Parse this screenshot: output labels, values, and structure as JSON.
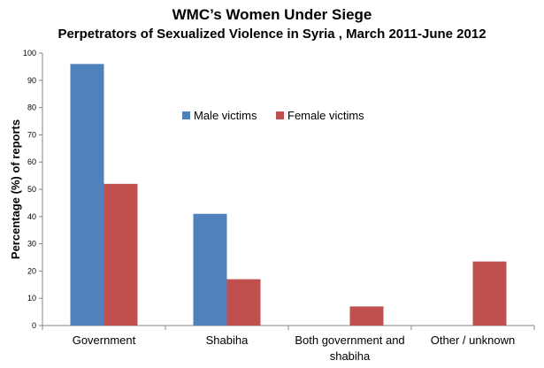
{
  "title": "WMC’s Women Under Siege",
  "subtitle": "Perpetrators of Sexualized Violence in Syria , March 2011-June 2012",
  "chart_data": {
    "type": "bar",
    "categories": [
      [
        "Government"
      ],
      [
        "Shabiha"
      ],
      [
        "Both government and",
        "shabiha"
      ],
      [
        "Other / unknown"
      ]
    ],
    "series": [
      {
        "name": "Male victims",
        "color": "#4f81bd",
        "values": [
          96,
          41,
          0,
          0
        ]
      },
      {
        "name": "Female victims",
        "color": "#c0504d",
        "values": [
          52,
          17,
          7,
          23.5
        ]
      }
    ],
    "ylabel": "Percentage (%) of reports",
    "xlabel": "",
    "ylim": [
      0,
      100
    ],
    "yticks": [
      0,
      10,
      20,
      30,
      40,
      50,
      60,
      70,
      80,
      90,
      100
    ],
    "grid": false,
    "legend_position": "upper-center"
  }
}
